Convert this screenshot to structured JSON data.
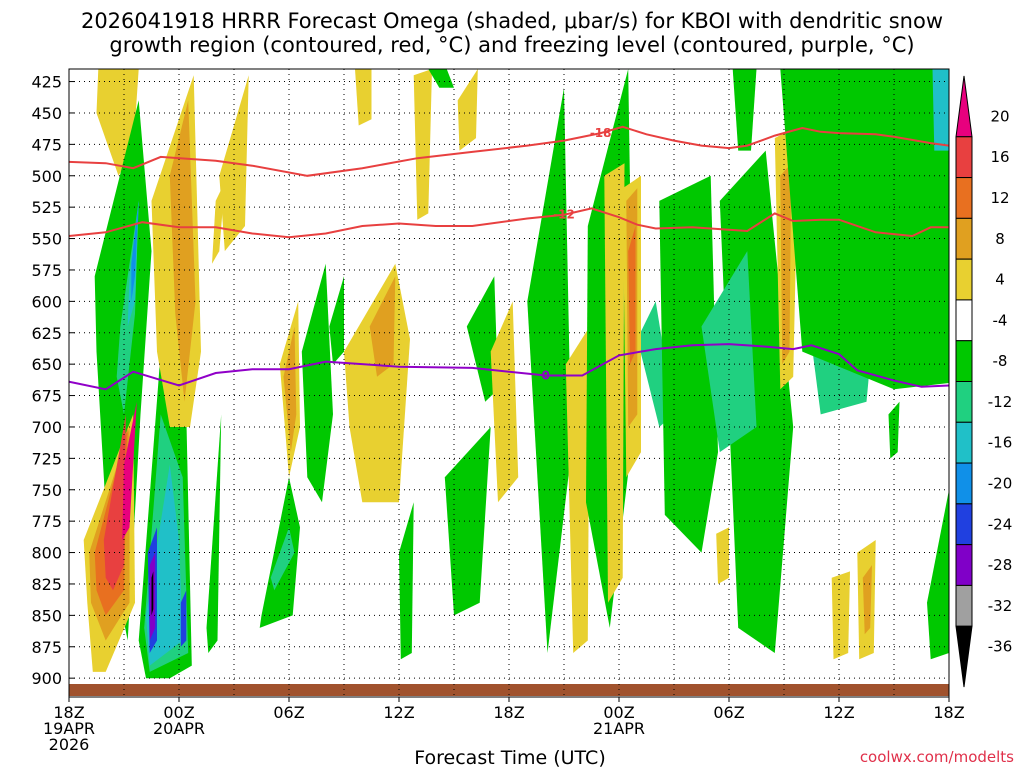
{
  "chart_data": {
    "type": "heatmap",
    "title_line1": "2026041918 HRRR Forecast Omega (shaded, μbar/s) for KBOI with dendritic snow",
    "title_line2": "growth region (contoured, red, °C) and freezing level (contoured, purple, °C)",
    "xlabel": "Forecast Time (UTC)",
    "credit": "coolwx.com/modelts",
    "x_hours_range": [
      0,
      48
    ],
    "ylim": [
      915,
      415
    ],
    "y_ticks": [
      425,
      450,
      475,
      500,
      525,
      550,
      575,
      600,
      625,
      650,
      675,
      700,
      725,
      750,
      775,
      800,
      825,
      850,
      875,
      900
    ],
    "x_ticks": [
      {
        "hour": 0,
        "lines": [
          "18Z",
          "19APR",
          "2026"
        ]
      },
      {
        "hour": 6,
        "lines": [
          "00Z",
          "20APR"
        ]
      },
      {
        "hour": 12,
        "lines": [
          "06Z"
        ]
      },
      {
        "hour": 18,
        "lines": [
          "12Z"
        ]
      },
      {
        "hour": 24,
        "lines": [
          "18Z"
        ]
      },
      {
        "hour": 30,
        "lines": [
          "00Z",
          "21APR"
        ]
      },
      {
        "hour": 36,
        "lines": [
          "06Z"
        ]
      },
      {
        "hour": 42,
        "lines": [
          "12Z"
        ]
      },
      {
        "hour": 48,
        "lines": [
          "18Z"
        ]
      }
    ],
    "colorbar": {
      "labels": [
        "20",
        "16",
        "12",
        "8",
        "4",
        "-4",
        "-8",
        "-12",
        "-16",
        "-20",
        "-24",
        "-28",
        "-32",
        "-36"
      ],
      "colors": [
        "#e8007e",
        "#e84040",
        "#e87020",
        "#e0a020",
        "#e8d030",
        "#ffffff",
        "#00c800",
        "#20d080",
        "#20c0c8",
        "#1090e8",
        "#2040e0",
        "#8000c8",
        "#a0a0a0",
        "#000000"
      ]
    },
    "contours": [
      {
        "name": "-18",
        "label": "-18",
        "color": "#e84040",
        "x": [
          0,
          2,
          3.5,
          5,
          8,
          10,
          13,
          16,
          19,
          22,
          25,
          27,
          29,
          30.2,
          31.5,
          33,
          34.5,
          36,
          37,
          38.5,
          39.5,
          40,
          41,
          42,
          44,
          45,
          47,
          48
        ],
        "y": [
          489,
          490,
          494,
          485,
          488,
          492,
          500,
          494,
          486,
          481,
          476,
          472,
          466,
          461,
          467,
          472,
          476,
          478,
          476,
          468,
          464,
          462,
          465,
          466,
          467,
          469,
          474,
          476
        ]
      },
      {
        "name": "-12",
        "label": "-12",
        "color": "#e84040",
        "x": [
          0,
          2,
          4,
          6,
          8,
          10,
          12,
          14,
          16,
          18,
          20,
          22,
          25,
          27,
          28.5,
          30,
          31,
          32,
          34,
          36,
          37,
          38.5,
          39.5,
          41,
          42,
          44,
          46,
          47,
          48
        ],
        "y": [
          548,
          545,
          537,
          541,
          541,
          546,
          549,
          546,
          540,
          538,
          540,
          540,
          534,
          531,
          526,
          533,
          539,
          542,
          541,
          543,
          544,
          530,
          536,
          535,
          535,
          545,
          548,
          541,
          541
        ]
      },
      {
        "name": "0",
        "label": "0",
        "color": "#9000c8",
        "x": [
          0,
          2,
          3.5,
          6,
          8,
          10,
          12,
          14,
          18,
          22,
          26,
          28,
          30,
          32,
          34,
          36,
          38,
          39.5,
          40.5,
          42,
          43,
          45,
          46.5,
          48
        ],
        "y": [
          664,
          670,
          656,
          667,
          657,
          654,
          654,
          648,
          652,
          653,
          659,
          659,
          643,
          638,
          635,
          634,
          636,
          638,
          635,
          642,
          655,
          663,
          668,
          667
        ]
      }
    ],
    "shaded_regions": [
      {
        "v": 8,
        "x": [
          2.6,
          3.6,
          3.4,
          2.8,
          2.4
        ],
        "y": [
          415,
          415,
          460,
          470,
          440
        ]
      },
      {
        "v": 4,
        "x": [
          1.6,
          3.8,
          3.5,
          2.7,
          1.5
        ],
        "y": [
          415,
          415,
          480,
          500,
          450
        ]
      },
      {
        "v": -8,
        "x": [
          1.4,
          3.8,
          4.5,
          3.9,
          3.2,
          2.1,
          1.5
        ],
        "y": [
          580,
          440,
          560,
          690,
          870,
          790,
          640
        ]
      },
      {
        "v": -12,
        "x": [
          2.8,
          3.8,
          3.6,
          3,
          2.6
        ],
        "y": [
          620,
          520,
          610,
          690,
          660
        ]
      },
      {
        "v": -16,
        "x": [
          3.3,
          3.8,
          3.6,
          3.2
        ],
        "y": [
          580,
          520,
          600,
          620
        ]
      },
      {
        "v": -20,
        "x": [
          3.4,
          3.8,
          3.6,
          3.4
        ],
        "y": [
          570,
          520,
          580,
          600
        ]
      },
      {
        "v": 4,
        "x": [
          0.8,
          3.5,
          3.6,
          2,
          1.3,
          1
        ],
        "y": [
          790,
          690,
          840,
          895,
          895,
          840
        ]
      },
      {
        "v": 8,
        "x": [
          1.1,
          3.3,
          3.3,
          2,
          1.2
        ],
        "y": [
          800,
          700,
          840,
          870,
          840
        ]
      },
      {
        "v": 12,
        "x": [
          1.4,
          3.2,
          3,
          2,
          1.5
        ],
        "y": [
          800,
          700,
          830,
          850,
          830
        ]
      },
      {
        "v": 16,
        "x": [
          1.9,
          3.1,
          3,
          2.4,
          2
        ],
        "y": [
          790,
          690,
          810,
          830,
          820
        ]
      },
      {
        "v": 20,
        "x": [
          3,
          3.7,
          3.3,
          2.9
        ],
        "y": [
          730,
          680,
          780,
          790
        ]
      },
      {
        "v": -8,
        "x": [
          3.8,
          5,
          6.4,
          6.7,
          5.5,
          4.2
        ],
        "y": [
          870,
          640,
          690,
          890,
          900,
          900
        ]
      },
      {
        "v": -12,
        "x": [
          4.1,
          5,
          6.2,
          6.5,
          4.4
        ],
        "y": [
          860,
          690,
          740,
          880,
          895
        ]
      },
      {
        "v": -16,
        "x": [
          4.2,
          5.5,
          6,
          6.2,
          4.4
        ],
        "y": [
          850,
          730,
          790,
          870,
          890
        ]
      },
      {
        "v": -24,
        "x": [
          4.3,
          4.8,
          4.8,
          4.4
        ],
        "y": [
          800,
          780,
          870,
          880
        ]
      },
      {
        "v": -28,
        "x": [
          4.4,
          4.7,
          4.7,
          4.4
        ],
        "y": [
          810,
          800,
          860,
          870
        ]
      },
      {
        "v": -36,
        "x": [
          4.5,
          4.6,
          4.6,
          4.5
        ],
        "y": [
          820,
          815,
          845,
          850
        ]
      },
      {
        "v": -24,
        "x": [
          6.1,
          6.4,
          6.4,
          6.1
        ],
        "y": [
          840,
          830,
          870,
          875
        ]
      },
      {
        "v": 4,
        "x": [
          4.5,
          6.8,
          7.2,
          6.6,
          5.5,
          4.8
        ],
        "y": [
          520,
          420,
          640,
          700,
          700,
          640
        ]
      },
      {
        "v": 8,
        "x": [
          5.5,
          6.5,
          6.9,
          6.3,
          5.8
        ],
        "y": [
          500,
          440,
          600,
          680,
          610
        ]
      },
      {
        "v": 4,
        "x": [
          8,
          8.5,
          8.2,
          7.8
        ],
        "y": [
          520,
          505,
          560,
          570
        ]
      },
      {
        "v": -8,
        "x": [
          7.5,
          8.3,
          8.1,
          7.6
        ],
        "y": [
          860,
          690,
          870,
          880
        ]
      },
      {
        "v": 4,
        "x": [
          8.2,
          9.8,
          9.6,
          8.5
        ],
        "y": [
          500,
          420,
          540,
          560
        ]
      },
      {
        "v": -8,
        "x": [
          10.5,
          12,
          12.6,
          12.2,
          10.4
        ],
        "y": [
          850,
          740,
          780,
          850,
          860
        ]
      },
      {
        "v": -12,
        "x": [
          11,
          12,
          12.3,
          11.2
        ],
        "y": [
          820,
          780,
          800,
          830
        ]
      },
      {
        "v": 4,
        "x": [
          11.5,
          12.5,
          12.6,
          12
        ],
        "y": [
          650,
          600,
          700,
          740
        ]
      },
      {
        "v": 8,
        "x": [
          11.7,
          12.3,
          12.4,
          12.1
        ],
        "y": [
          660,
          620,
          690,
          720
        ]
      },
      {
        "v": -8,
        "x": [
          12.7,
          14,
          14.4,
          13.8,
          13
        ],
        "y": [
          640,
          570,
          690,
          760,
          740
        ]
      },
      {
        "v": 4,
        "x": [
          15,
          17.8,
          18.6,
          18,
          16,
          15.3
        ],
        "y": [
          640,
          570,
          630,
          760,
          760,
          700
        ]
      },
      {
        "v": 8,
        "x": [
          16.4,
          17.8,
          17.7,
          16.8
        ],
        "y": [
          620,
          580,
          650,
          660
        ]
      },
      {
        "v": -8,
        "x": [
          14.2,
          15,
          15,
          14.4
        ],
        "y": [
          620,
          580,
          640,
          650
        ]
      },
      {
        "v": -8,
        "x": [
          18,
          18.8,
          18.7,
          18.1
        ],
        "y": [
          800,
          760,
          880,
          885
        ]
      },
      {
        "v": 4,
        "x": [
          15.6,
          16.5,
          16.5,
          15.8
        ],
        "y": [
          415,
          415,
          455,
          460
        ]
      },
      {
        "v": 4,
        "x": [
          18.8,
          19.8,
          19.6,
          19
        ],
        "y": [
          420,
          415,
          530,
          535
        ]
      },
      {
        "v": -8,
        "x": [
          19.6,
          20.6,
          21,
          20.2
        ],
        "y": [
          415,
          415,
          430,
          430
        ]
      },
      {
        "v": 4,
        "x": [
          21.2,
          22.3,
          22.2,
          21.3
        ],
        "y": [
          440,
          415,
          470,
          480
        ]
      },
      {
        "v": -8,
        "x": [
          20.5,
          23,
          22.4,
          21
        ],
        "y": [
          740,
          700,
          840,
          850
        ]
      },
      {
        "v": -8,
        "x": [
          21.7,
          23.2,
          23.4,
          22.7
        ],
        "y": [
          620,
          580,
          670,
          680
        ]
      },
      {
        "v": 4,
        "x": [
          23,
          24.2,
          24.5,
          23.4
        ],
        "y": [
          640,
          600,
          740,
          760
        ]
      },
      {
        "v": -8,
        "x": [
          25,
          27,
          27.4,
          26.1
        ],
        "y": [
          600,
          430,
          720,
          880
        ]
      },
      {
        "v": 4,
        "x": [
          27.1,
          28.4,
          28.3,
          27.5
        ],
        "y": [
          650,
          620,
          870,
          880
        ]
      },
      {
        "v": -8,
        "x": [
          28.3,
          30.5,
          30.8,
          29.5,
          28.2
        ],
        "y": [
          540,
          415,
          700,
          860,
          760
        ]
      },
      {
        "v": -12,
        "x": [
          29.4,
          30.3,
          30.2,
          29.5
        ],
        "y": [
          640,
          560,
          700,
          720
        ]
      },
      {
        "v": -16,
        "x": [
          29.7,
          30.2,
          30.1,
          29.7
        ],
        "y": [
          650,
          620,
          670,
          680
        ]
      },
      {
        "v": 4,
        "x": [
          29.2,
          30.3,
          30.2,
          29.4
        ],
        "y": [
          500,
          490,
          820,
          840
        ]
      },
      {
        "v": -12,
        "x": [
          31,
          32,
          33,
          32.2
        ],
        "y": [
          630,
          600,
          690,
          700
        ]
      },
      {
        "v": 4,
        "x": [
          30.2,
          31.2,
          31.2,
          30.4
        ],
        "y": [
          510,
          500,
          720,
          740
        ]
      },
      {
        "v": 8,
        "x": [
          30.4,
          31,
          31,
          30.5
        ],
        "y": [
          520,
          510,
          690,
          700
        ]
      },
      {
        "v": 12,
        "x": [
          30.5,
          30.9,
          30.9,
          30.6
        ],
        "y": [
          560,
          540,
          640,
          650
        ]
      },
      {
        "v": -8,
        "x": [
          32.2,
          35,
          35.4,
          34.5,
          32.5
        ],
        "y": [
          520,
          500,
          720,
          800,
          770
        ]
      },
      {
        "v": -8,
        "x": [
          35.5,
          38,
          39.5,
          38.5,
          36.5
        ],
        "y": [
          520,
          480,
          700,
          880,
          860
        ]
      },
      {
        "v": -12,
        "x": [
          34.5,
          37,
          37.5,
          35.5
        ],
        "y": [
          620,
          560,
          700,
          720
        ]
      },
      {
        "v": -8,
        "x": [
          36.2,
          37.5,
          37.2,
          36.5
        ],
        "y": [
          415,
          415,
          480,
          480
        ]
      },
      {
        "v": 4,
        "x": [
          38.5,
          39.8,
          39.5,
          38.8
        ],
        "y": [
          470,
          460,
          660,
          670
        ]
      },
      {
        "v": 8,
        "x": [
          38.8,
          39.4,
          39.3,
          38.9
        ],
        "y": [
          500,
          490,
          640,
          650
        ]
      },
      {
        "v": -12,
        "x": [
          39.5,
          42,
          44,
          43.5,
          41
        ],
        "y": [
          520,
          470,
          600,
          680,
          690
        ]
      },
      {
        "v": -8,
        "x": [
          38.8,
          48,
          48,
          45,
          40
        ],
        "y": [
          415,
          415,
          665,
          670,
          640
        ]
      },
      {
        "v": -16,
        "x": [
          47.1,
          48,
          48,
          47.2
        ],
        "y": [
          415,
          415,
          480,
          480
        ]
      },
      {
        "v": 4,
        "x": [
          41.6,
          42.6,
          42.5,
          41.7
        ],
        "y": [
          820,
          815,
          880,
          885
        ]
      },
      {
        "v": 4,
        "x": [
          43,
          44,
          43.9,
          43.1
        ],
        "y": [
          800,
          790,
          880,
          885
        ]
      },
      {
        "v": 8,
        "x": [
          43.3,
          43.8,
          43.7,
          43.4
        ],
        "y": [
          820,
          810,
          860,
          865
        ]
      },
      {
        "v": -8,
        "x": [
          46.8,
          48,
          48,
          47
        ],
        "y": [
          840,
          750,
          880,
          885
        ]
      },
      {
        "v": -8,
        "x": [
          44.7,
          45.3,
          45.2,
          44.8
        ],
        "y": [
          690,
          680,
          720,
          725
        ]
      },
      {
        "v": 4,
        "x": [
          35.3,
          36,
          36,
          35.4
        ],
        "y": [
          785,
          780,
          820,
          825
        ]
      }
    ]
  }
}
